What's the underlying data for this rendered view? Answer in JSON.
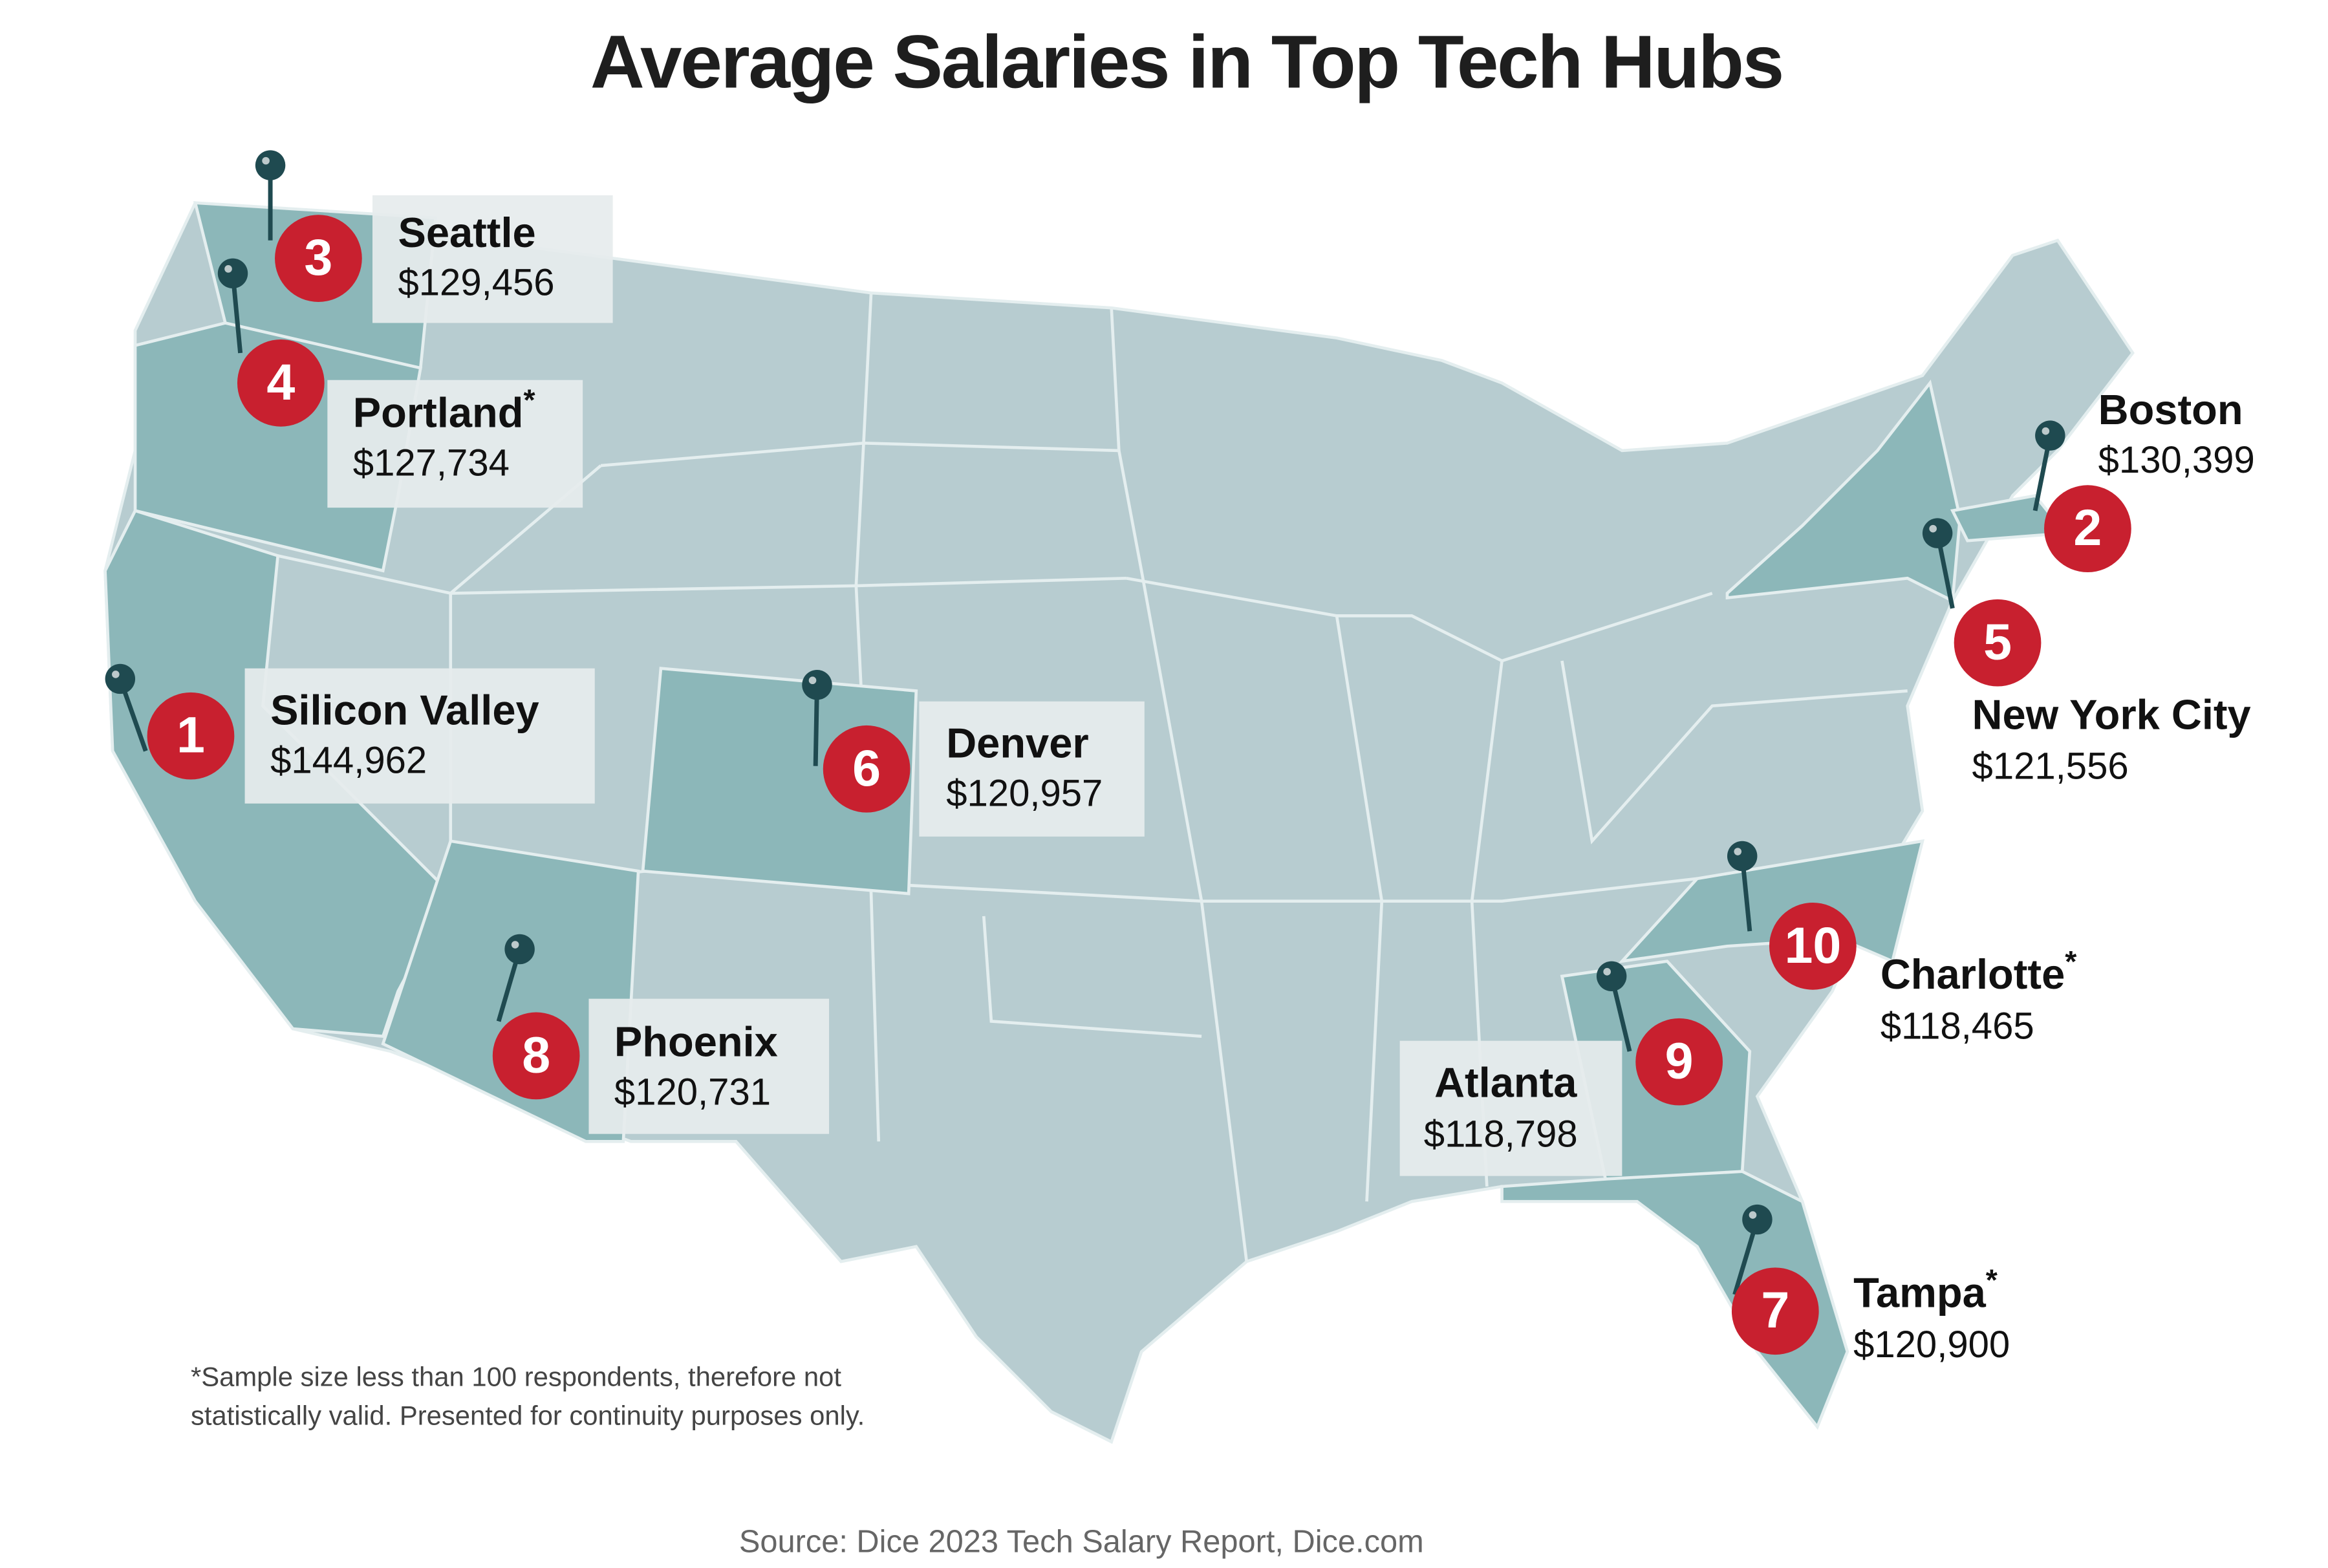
{
  "title": "Average Salaries in Top Tech Hubs",
  "markers": [
    {
      "rank": 1,
      "name": "Silicon Valley",
      "salary": "$144,962"
    },
    {
      "rank": 2,
      "name": "Boston",
      "salary": "$130,399"
    },
    {
      "rank": 3,
      "name": "Seattle",
      "salary": "$129,456"
    },
    {
      "rank": 4,
      "name": "Portland",
      "note": "*",
      "salary": "$127,734"
    },
    {
      "rank": 5,
      "name": "New York City",
      "salary": "$121,556"
    },
    {
      "rank": 6,
      "name": "Denver",
      "salary": "$120,957"
    },
    {
      "rank": 7,
      "name": "Tampa",
      "note": "*",
      "salary": "$120,900"
    },
    {
      "rank": 8,
      "name": "Phoenix",
      "salary": "$120,731"
    },
    {
      "rank": 9,
      "name": "Atlanta",
      "salary": "$118,798"
    },
    {
      "rank": 10,
      "name": "Charlotte",
      "note": "*",
      "salary": "$118,465"
    }
  ],
  "footnote": [
    "*Sample size less than 100 respondents, therefore not",
    "statistically valid. Presented for continuity purposes only."
  ],
  "source": "Source: Dice 2023 Tech Salary Report, Dice.com"
}
